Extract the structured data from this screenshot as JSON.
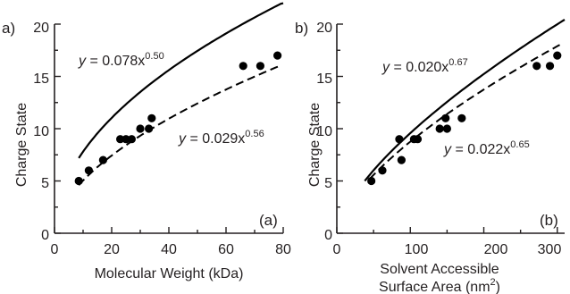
{
  "chart_data": [
    {
      "type": "scatter",
      "panel_label": "a)",
      "corner_label": "(a)",
      "xlabel": "Molecular Weight (kDa)",
      "ylabel": "Charge State",
      "xlim": [
        0,
        80
      ],
      "ylim": [
        0,
        20
      ],
      "xticks": [
        "0",
        "20",
        "40",
        "60",
        "80"
      ],
      "yticks": [
        "0",
        "5",
        "10",
        "15",
        "20"
      ],
      "grid": false,
      "series": [
        {
          "x": [
            8.5,
            12,
            17,
            23,
            25,
            27,
            30,
            33,
            34,
            66,
            72,
            78
          ],
          "y": [
            5,
            6,
            7,
            9,
            9,
            9,
            10,
            10,
            11,
            16,
            16,
            17
          ]
        }
      ],
      "fits": [
        {
          "style": "solid",
          "coef": 0.078,
          "exp": 0.5,
          "x_range": [
            8.5,
            80
          ],
          "label_prefix": "y",
          "label_main": " = 0.078x",
          "label_exp": "0.50"
        },
        {
          "style": "dashed",
          "coef": 0.029,
          "exp": 0.56,
          "x_range": [
            8.5,
            79
          ],
          "label_prefix": "y",
          "label_main": " = 0.029x",
          "label_exp": "0.56"
        }
      ]
    },
    {
      "type": "scatter",
      "panel_label": "b)",
      "corner_label": "(b)",
      "xlabel": "Solvent Accessible",
      "xlabel_line2": "Surface Area (nm",
      "xlabel_sup": "2",
      "xlabel_end": ")",
      "ylabel": "Charge State",
      "xlim": [
        0,
        310
      ],
      "ylim": [
        0,
        20
      ],
      "xticks": [
        "0",
        "100",
        "200",
        "300"
      ],
      "yticks": [
        "0",
        "5",
        "10",
        "15",
        "20"
      ],
      "grid": false,
      "series": [
        {
          "x": [
            47,
            62,
            85,
            88,
            105,
            110,
            140,
            148,
            150,
            170,
            272,
            290,
            300
          ],
          "y": [
            5,
            6,
            9,
            7,
            9,
            9,
            10,
            11,
            10,
            11,
            16,
            16,
            17
          ]
        }
      ],
      "fits": [
        {
          "style": "solid",
          "coef": 0.02,
          "exp": 0.67,
          "x_range": [
            38,
            310
          ],
          "label_prefix": "y",
          "label_main": " = 0.020x",
          "label_exp": "0.67"
        },
        {
          "style": "dashed",
          "coef": 0.022,
          "exp": 0.65,
          "x_range": [
            45,
            305
          ],
          "label_prefix": "y",
          "label_main": " = 0.022x",
          "label_exp": "0.65"
        }
      ]
    }
  ]
}
